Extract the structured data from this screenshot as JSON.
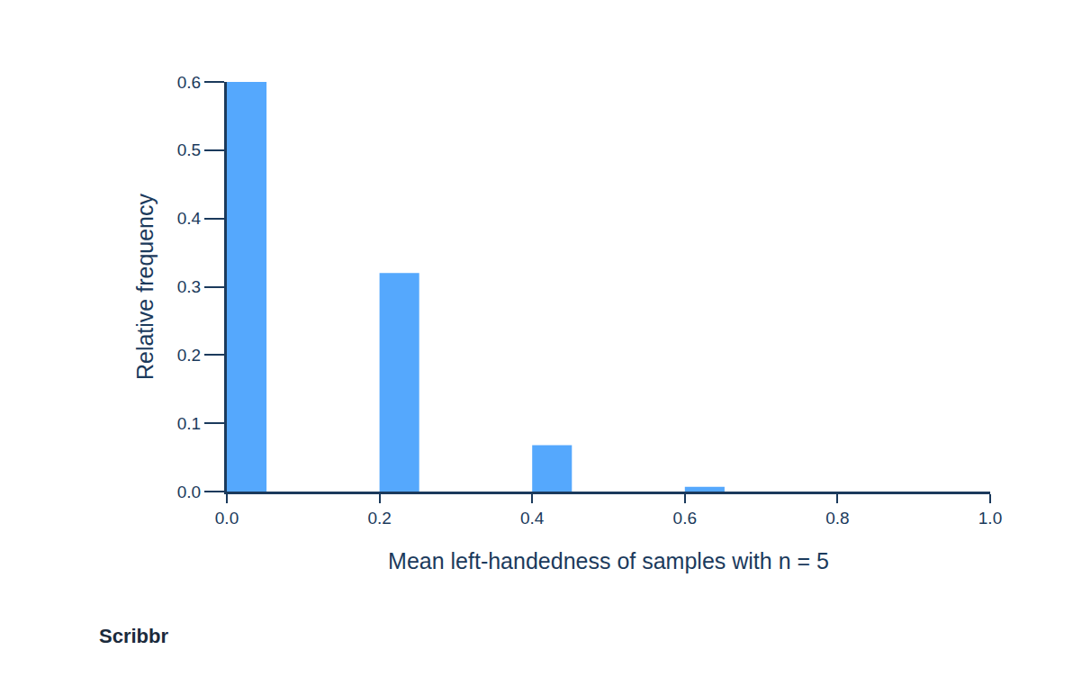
{
  "chart_data": {
    "type": "bar",
    "x_label": "Mean left-handedness of samples with n = 5",
    "y_label": "Relative frequency",
    "x": [
      0,
      0.2,
      0.4,
      0.6
    ],
    "values": [
      0.6,
      0.32,
      0.068,
      0.007
    ],
    "color": "#55a8fd",
    "xlim": [
      0,
      1.0
    ],
    "xticks": [
      {
        "value": 0,
        "label": "0.0"
      },
      0.2,
      0.4,
      0.6,
      0.8,
      {
        "value": 1.0,
        "label": "1.0"
      }
    ],
    "ylim": [
      0,
      0.6
    ],
    "yticks": [
      {
        "value": 0,
        "label": "0.0"
      },
      0.1,
      0.2,
      0.3,
      0.4,
      0.5,
      0.6
    ],
    "grid": false,
    "annotations": [
      "Scribbr"
    ]
  }
}
